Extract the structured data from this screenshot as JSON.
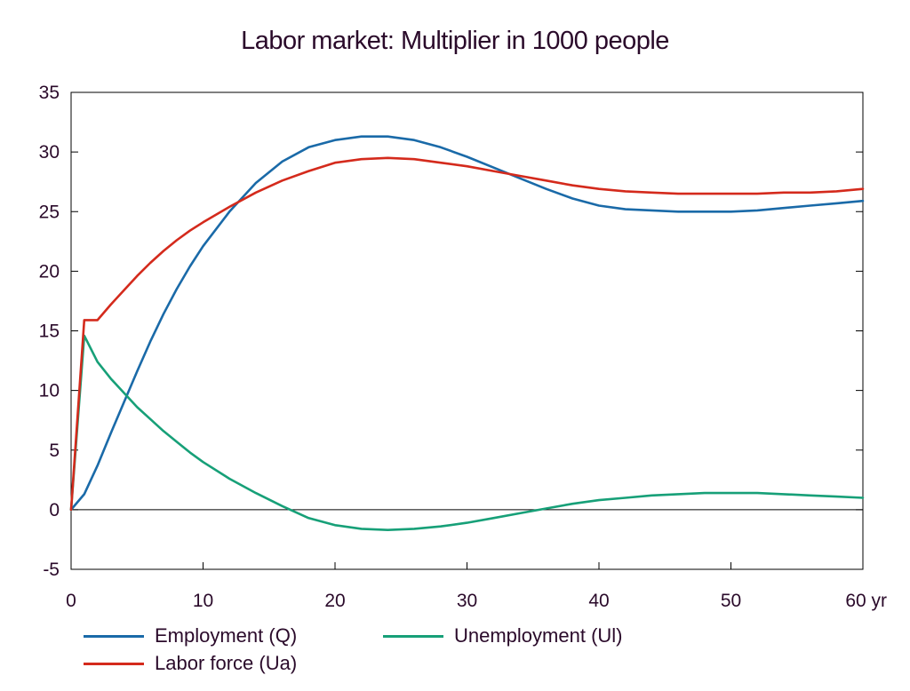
{
  "chart_data": {
    "type": "line",
    "title": "Labor market: Multiplier in 1000 people",
    "x_ticks": [
      "0",
      "10",
      "20",
      "30",
      "40",
      "50",
      "60 yr"
    ],
    "x_tick_values": [
      0,
      10,
      20,
      30,
      40,
      50,
      60
    ],
    "y_ticks": [
      "-5",
      "0",
      "5",
      "10",
      "15",
      "20",
      "25",
      "30",
      "35"
    ],
    "y_tick_values": [
      -5,
      0,
      5,
      10,
      15,
      20,
      25,
      30,
      35
    ],
    "xlim": [
      0,
      60
    ],
    "ylim": [
      -5,
      35
    ],
    "grid": false,
    "zero_line": true,
    "legend_position": "bottom",
    "series": [
      {
        "name": "Employment (Q)",
        "color": "#1a6aa8",
        "x": [
          0,
          1,
          2,
          3,
          4,
          5,
          6,
          7,
          8,
          9,
          10,
          12,
          14,
          16,
          18,
          20,
          22,
          24,
          26,
          28,
          30,
          32,
          34,
          36,
          38,
          40,
          42,
          44,
          46,
          48,
          50,
          52,
          54,
          56,
          58,
          60
        ],
        "y": [
          0,
          1.3,
          3.7,
          6.4,
          9.0,
          11.6,
          14.1,
          16.4,
          18.5,
          20.4,
          22.1,
          25.0,
          27.4,
          29.2,
          30.4,
          31.0,
          31.3,
          31.3,
          31.0,
          30.4,
          29.6,
          28.7,
          27.8,
          26.9,
          26.1,
          25.5,
          25.2,
          25.1,
          25.0,
          25.0,
          25.0,
          25.1,
          25.3,
          25.5,
          25.7,
          25.9
        ]
      },
      {
        "name": "Unemployment (Ul)",
        "color": "#17a078",
        "x": [
          0,
          1,
          2,
          3,
          4,
          5,
          6,
          7,
          8,
          9,
          10,
          12,
          14,
          16,
          18,
          20,
          22,
          24,
          26,
          28,
          30,
          32,
          34,
          36,
          38,
          40,
          42,
          44,
          46,
          48,
          50,
          52,
          54,
          56,
          58,
          60
        ],
        "y": [
          0,
          14.6,
          12.4,
          11.0,
          9.8,
          8.6,
          7.6,
          6.6,
          5.7,
          4.8,
          4.0,
          2.6,
          1.4,
          0.3,
          -0.7,
          -1.3,
          -1.6,
          -1.7,
          -1.6,
          -1.4,
          -1.1,
          -0.7,
          -0.3,
          0.1,
          0.5,
          0.8,
          1.0,
          1.2,
          1.3,
          1.4,
          1.4,
          1.4,
          1.3,
          1.2,
          1.1,
          1.0
        ]
      },
      {
        "name": "Labor force (Ua)",
        "color": "#d42a1c",
        "x": [
          0,
          1,
          2,
          3,
          4,
          5,
          6,
          7,
          8,
          9,
          10,
          12,
          14,
          16,
          18,
          20,
          22,
          24,
          26,
          28,
          30,
          32,
          34,
          36,
          38,
          40,
          42,
          44,
          46,
          48,
          50,
          52,
          54,
          56,
          58,
          60
        ],
        "y": [
          0,
          15.9,
          15.9,
          17.2,
          18.4,
          19.6,
          20.7,
          21.7,
          22.6,
          23.4,
          24.1,
          25.4,
          26.6,
          27.6,
          28.4,
          29.1,
          29.4,
          29.5,
          29.4,
          29.1,
          28.8,
          28.4,
          28.0,
          27.6,
          27.2,
          26.9,
          26.7,
          26.6,
          26.5,
          26.5,
          26.5,
          26.5,
          26.6,
          26.6,
          26.7,
          26.9
        ]
      }
    ]
  },
  "legend": [
    {
      "label": "Employment (Q)",
      "color": "#1a6aa8"
    },
    {
      "label": "Unemployment (Ul)",
      "color": "#17a078"
    },
    {
      "label": "Labor force (Ua)",
      "color": "#d42a1c"
    }
  ]
}
